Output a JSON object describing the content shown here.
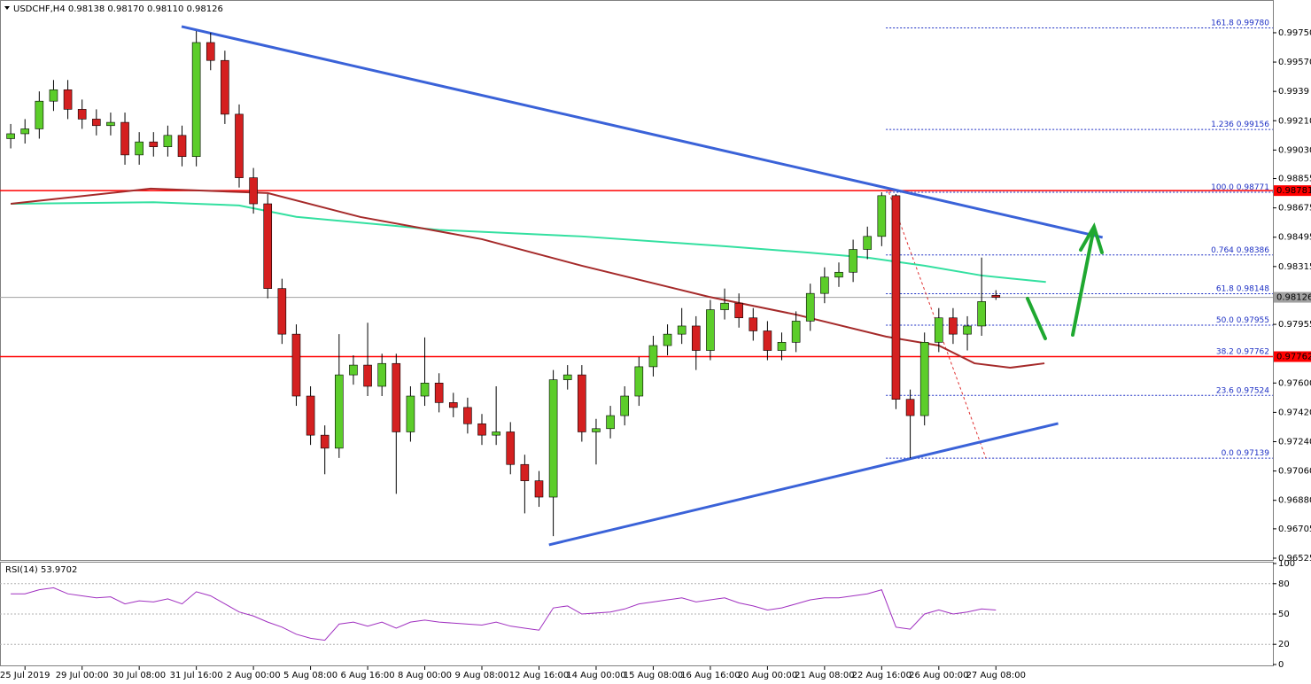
{
  "chart_data": [
    {
      "type": "candlestick",
      "title": "USDCHF,H4",
      "ohlc_labels": [
        "0.98138",
        "0.98170",
        "0.98110",
        "0.98126"
      ],
      "xlim": [
        -0.75,
        88.4
      ],
      "xticks": [
        {
          "value": 1,
          "label": "25 Jul 2019"
        },
        {
          "value": 5,
          "label": "29 Jul 00:00"
        },
        {
          "value": 9,
          "label": "30 Jul 08:00"
        },
        {
          "value": 13,
          "label": "31 Jul 16:00"
        },
        {
          "value": 17,
          "label": "2 Aug 00:00"
        },
        {
          "value": 21,
          "label": "5 Aug 08:00"
        },
        {
          "value": 25,
          "label": "6 Aug 16:00"
        },
        {
          "value": 29,
          "label": "8 Aug 00:00"
        },
        {
          "value": 33,
          "label": "9 Aug 08:00"
        },
        {
          "value": 37,
          "label": "12 Aug 16:00"
        },
        {
          "value": 41,
          "label": "14 Aug 00:00"
        },
        {
          "value": 45,
          "label": "15 Aug 08:00"
        },
        {
          "value": 49,
          "label": "16 Aug 16:00"
        },
        {
          "value": 53,
          "label": "20 Aug 00:00"
        },
        {
          "value": 57,
          "label": "21 Aug 08:00"
        },
        {
          "value": 61,
          "label": "22 Aug 16:00"
        },
        {
          "value": 65,
          "label": "26 Aug 00:00"
        },
        {
          "value": 69,
          "label": "27 Aug 08:00"
        }
      ],
      "ylim": [
        0.96514,
        0.99951
      ],
      "yticks": [
        {
          "value": 0.9975,
          "label": "0.99750"
        },
        {
          "value": 0.9957,
          "label": "0.99570"
        },
        0.9939,
        {
          "value": 0.9921,
          "label": "0.99210"
        },
        {
          "value": 0.9903,
          "label": "0.99030"
        },
        0.98855,
        0.98675,
        0.98495,
        0.98315,
        {
          "value": 0.9796,
          "label": "0.97955"
        },
        {
          "value": 0.976,
          "label": "0.97600"
        },
        {
          "value": 0.9742,
          "label": "0.97420"
        },
        {
          "value": 0.9724,
          "label": "0.97240"
        },
        {
          "value": 0.9706,
          "label": "0.97060"
        },
        {
          "value": 0.9688,
          "label": "0.96880"
        },
        0.96705,
        0.96525
      ],
      "up_color": "#5ccd2a",
      "down_color": "#d42020",
      "open": [
        0.991,
        0.9913,
        0.9916,
        0.9933,
        0.994,
        0.9928,
        0.9922,
        0.9918,
        0.992,
        0.99,
        0.9908,
        0.9905,
        0.9912,
        0.9899,
        0.9969,
        0.9958,
        0.9925,
        0.9886,
        0.987,
        0.9818,
        0.979,
        0.9752,
        0.9728,
        0.972,
        0.9765,
        0.9771,
        0.9758,
        0.9772,
        0.973,
        0.9752,
        0.976,
        0.9748,
        0.9745,
        0.9735,
        0.9728,
        0.973,
        0.971,
        0.97,
        0.969,
        0.9762,
        0.9765,
        0.973,
        0.9732,
        0.974,
        0.9752,
        0.977,
        0.9783,
        0.979,
        0.9795,
        0.978,
        0.9805,
        0.9809,
        0.98,
        0.9792,
        0.978,
        0.9785,
        0.9798,
        0.9815,
        0.9825,
        0.9828,
        0.9842,
        0.985,
        0.9875,
        0.975,
        0.974,
        0.9785,
        0.98,
        0.979,
        0.9795,
        0.98138
      ],
      "high": [
        0.9919,
        0.9922,
        0.9939,
        0.9946,
        0.9946,
        0.9934,
        0.9928,
        0.9926,
        0.9926,
        0.9914,
        0.9914,
        0.9918,
        0.9918,
        0.9976,
        0.9975,
        0.9964,
        0.9931,
        0.9892,
        0.9876,
        0.9824,
        0.9796,
        0.9758,
        0.9734,
        0.979,
        0.9777,
        0.9797,
        0.9778,
        0.9778,
        0.9758,
        0.9788,
        0.9766,
        0.9754,
        0.9751,
        0.9741,
        0.9758,
        0.9736,
        0.9716,
        0.9706,
        0.9768,
        0.9771,
        0.9771,
        0.9738,
        0.9746,
        0.9758,
        0.9776,
        0.9789,
        0.9796,
        0.9806,
        0.9801,
        0.9811,
        0.9818,
        0.9815,
        0.9806,
        0.9798,
        0.9791,
        0.9804,
        0.9821,
        0.9831,
        0.9834,
        0.9848,
        0.9856,
        0.98771,
        0.9876,
        0.9756,
        0.9791,
        0.9806,
        0.9806,
        0.9801,
        0.9837,
        0.9817
      ],
      "low": [
        0.9904,
        0.9907,
        0.991,
        0.9927,
        0.9922,
        0.9916,
        0.9912,
        0.9912,
        0.9894,
        0.9894,
        0.9899,
        0.9899,
        0.9893,
        0.9893,
        0.9952,
        0.9919,
        0.988,
        0.9864,
        0.9812,
        0.9784,
        0.9746,
        0.9722,
        0.9704,
        0.9714,
        0.9759,
        0.9752,
        0.9752,
        0.9692,
        0.9724,
        0.9746,
        0.9742,
        0.9739,
        0.9729,
        0.9722,
        0.9722,
        0.9704,
        0.968,
        0.9684,
        0.9666,
        0.9756,
        0.9724,
        0.971,
        0.9726,
        0.9734,
        0.9746,
        0.9764,
        0.9777,
        0.9784,
        0.9768,
        0.9774,
        0.9799,
        0.9794,
        0.9786,
        0.9774,
        0.9774,
        0.9779,
        0.9792,
        0.9809,
        0.9819,
        0.9822,
        0.9836,
        0.9844,
        0.9744,
        0.97139,
        0.9734,
        0.9779,
        0.9784,
        0.978,
        0.9789,
        0.9811
      ],
      "close": [
        0.9913,
        0.9916,
        0.9933,
        0.994,
        0.9928,
        0.9922,
        0.9918,
        0.992,
        0.99,
        0.9908,
        0.9905,
        0.9912,
        0.9899,
        0.9969,
        0.9958,
        0.9925,
        0.9886,
        0.987,
        0.9818,
        0.979,
        0.9752,
        0.9728,
        0.972,
        0.9765,
        0.9771,
        0.9758,
        0.9772,
        0.973,
        0.9752,
        0.976,
        0.9748,
        0.9745,
        0.9735,
        0.9728,
        0.973,
        0.971,
        0.97,
        0.969,
        0.9762,
        0.9765,
        0.973,
        0.9732,
        0.974,
        0.9752,
        0.977,
        0.9783,
        0.979,
        0.9795,
        0.978,
        0.9805,
        0.9809,
        0.98,
        0.9792,
        0.978,
        0.9785,
        0.9798,
        0.9815,
        0.9825,
        0.9828,
        0.9842,
        0.985,
        0.9875,
        0.975,
        0.974,
        0.9785,
        0.98,
        0.979,
        0.9795,
        0.981,
        0.98126
      ],
      "series": [
        {
          "color": "#33e0a0",
          "x": [
            0,
            10,
            16,
            20,
            30,
            40,
            50,
            56,
            60,
            64,
            68,
            72.5
          ],
          "values": [
            0.987,
            0.9871,
            0.9869,
            0.9862,
            0.9854,
            0.985,
            0.9844,
            0.984,
            0.9837,
            0.9832,
            0.9826,
            0.9822
          ]
        },
        {
          "color": "#a52a2a",
          "x": [
            0,
            9.8,
            18,
            24.5,
            33,
            40,
            48.9,
            55,
            61.3,
            65,
            67.5,
            70,
            72.4
          ],
          "values": [
            0.987,
            0.98793,
            0.98766,
            0.98619,
            0.98483,
            0.9832,
            0.98129,
            0.9802,
            0.97885,
            0.9783,
            0.97721,
            0.97694,
            0.97721
          ]
        }
      ],
      "trendlines": [
        {
          "color": "#3a62d8",
          "x": [
            11.97,
            76.47
          ],
          "values": [
            0.99788,
            0.98494
          ]
        },
        {
          "color": "#3a62d8",
          "x": [
            37.7,
            73.36
          ],
          "values": [
            0.96607,
            0.97352
          ]
        }
      ],
      "hlines": [
        {
          "value": 0.98781,
          "label": "0.98781",
          "color": "#ff0000"
        },
        {
          "value": 0.97762,
          "label": "0.97762",
          "color": "#ff0000"
        }
      ],
      "current": {
        "value": 0.98126,
        "label": "0.98126",
        "color": "#a0a0a0"
      },
      "fib": {
        "color": "#1c2fc4",
        "x_start": 61.3,
        "levels": [
          {
            "ratio": "161.8",
            "value": 0.9978,
            "label": "0.99780"
          },
          {
            "ratio": "1.236",
            "value": 0.99156,
            "label": "0.99156"
          },
          {
            "ratio": "100.0",
            "value": 0.98771,
            "label": "0.98771"
          },
          {
            "ratio": "0.764",
            "value": 0.98386,
            "label": "0.98386"
          },
          {
            "ratio": "61.8",
            "value": 0.98148,
            "label": "0.98148"
          },
          {
            "ratio": "50.0",
            "value": 0.97955,
            "label": "0.97955"
          },
          {
            "ratio": "38.2",
            "value": 0.97762,
            "label": "0.97762"
          },
          {
            "ratio": "23.6",
            "value": 0.97524,
            "label": "0.97524"
          },
          {
            "ratio": "0.0",
            "value": 0.97139,
            "label": "0.97139"
          }
        ],
        "swing": {
          "color": "#e03030",
          "x": [
            61.5,
            68.3
          ],
          "values": [
            0.98771,
            0.97139
          ]
        }
      }
    },
    {
      "type": "line",
      "title": "RSI(14)",
      "last_value": 53.9702,
      "color": "#a030c0",
      "ylim": [
        0,
        100
      ],
      "yticks": [
        0,
        20,
        50,
        80,
        100
      ],
      "levels": [
        20,
        50,
        80
      ],
      "values": [
        70,
        70,
        74,
        76,
        70,
        68,
        66,
        67,
        60,
        63,
        62,
        65,
        60,
        72,
        68,
        60,
        52,
        48,
        42,
        37,
        30,
        26,
        24,
        40,
        42,
        38,
        42,
        36,
        42,
        44,
        42,
        41,
        40,
        39,
        42,
        38,
        36,
        34,
        56,
        58,
        50,
        51,
        52,
        55,
        60,
        62,
        64,
        66,
        62,
        64,
        66,
        61,
        58,
        54,
        56,
        60,
        64,
        66,
        66,
        68,
        70,
        74,
        37,
        35,
        50,
        54,
        50,
        52,
        55,
        53.9702
      ]
    }
  ]
}
